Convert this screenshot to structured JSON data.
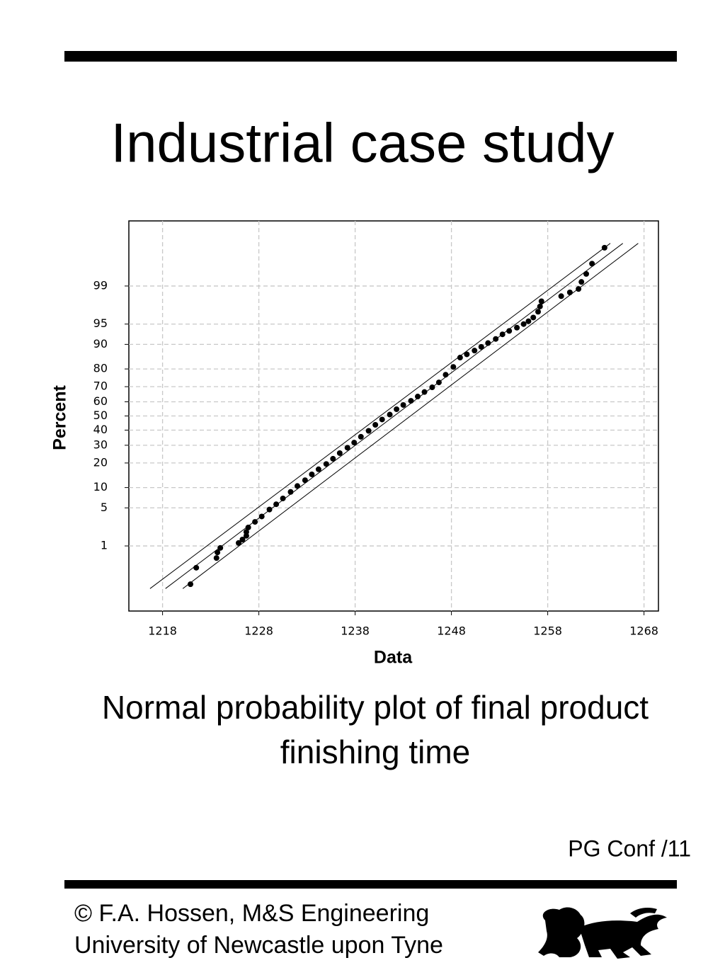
{
  "slide": {
    "title": "Industrial case study",
    "caption": [
      "Normal probability plot of final product",
      "finishing time"
    ],
    "page_label": "PG Conf /11",
    "footer": [
      "© F.A. Hossen, M&S Engineering",
      "University of Newcastle upon Tyne"
    ]
  },
  "chart_data": {
    "type": "scatter",
    "x_label": "Data",
    "y_label": "Percent",
    "yscale": "normal-probability",
    "grid": true,
    "color": "#000000",
    "xlim": [
      1214.5,
      1269.5
    ],
    "xticks": [
      1218,
      1228,
      1238,
      1248,
      1258,
      1268
    ],
    "ylim": [
      0.024,
      99.976
    ],
    "yticks": [
      1,
      5,
      10,
      20,
      30,
      40,
      50,
      60,
      70,
      80,
      90,
      95,
      99
    ],
    "x": [
      1220.9,
      1221.5,
      1223.6,
      1223.7,
      1224.0,
      1225.9,
      1226.3,
      1226.7,
      1226.7,
      1226.9,
      1227.6,
      1228.3,
      1229.1,
      1229.8,
      1230.5,
      1231.3,
      1232.0,
      1232.8,
      1233.5,
      1234.2,
      1235.0,
      1235.7,
      1236.4,
      1237.2,
      1237.9,
      1238.6,
      1239.4,
      1240.1,
      1240.8,
      1241.6,
      1242.3,
      1243.0,
      1243.8,
      1244.5,
      1245.2,
      1246.0,
      1246.7,
      1247.4,
      1248.2,
      1248.9,
      1249.6,
      1250.4,
      1251.1,
      1251.8,
      1252.6,
      1253.3,
      1254.0,
      1254.8,
      1255.5,
      1256.0,
      1256.5,
      1257.0,
      1257.2,
      1257.35,
      1259.4,
      1260.3,
      1261.2,
      1261.5,
      1262.0,
      1262.6,
      1263.9
    ],
    "values": [
      0.13,
      0.33,
      0.55,
      0.73,
      0.91,
      1.15,
      1.35,
      1.6,
      1.9,
      2.3,
      2.9,
      3.6,
      4.7,
      5.7,
      7.0,
      8.7,
      10.5,
      12.5,
      14.8,
      17.0,
      19.5,
      22.2,
      25.3,
      28.5,
      31.7,
      35.5,
      39.5,
      43.7,
      47.5,
      51.0,
      54.8,
      57.8,
      60.7,
      63.6,
      66.6,
      69.6,
      72.6,
      77.0,
      81.0,
      85.2,
      86.5,
      87.9,
      89.2,
      90.4,
      91.6,
      92.8,
      93.6,
      94.3,
      95.0,
      95.5,
      96.1,
      96.9,
      97.5,
      98.0,
      98.4,
      98.65,
      98.85,
      99.18,
      99.45,
      99.68,
      99.87
    ],
    "lines": [
      {
        "x": [
          1216.7,
          1264.5
        ],
        "values": [
          0.1,
          99.9
        ]
      },
      {
        "x": [
          1218.3,
          1265.8
        ],
        "values": [
          0.1,
          99.9
        ]
      },
      {
        "x": [
          1220.1,
          1267.4
        ],
        "values": [
          0.1,
          99.9
        ]
      }
    ]
  }
}
